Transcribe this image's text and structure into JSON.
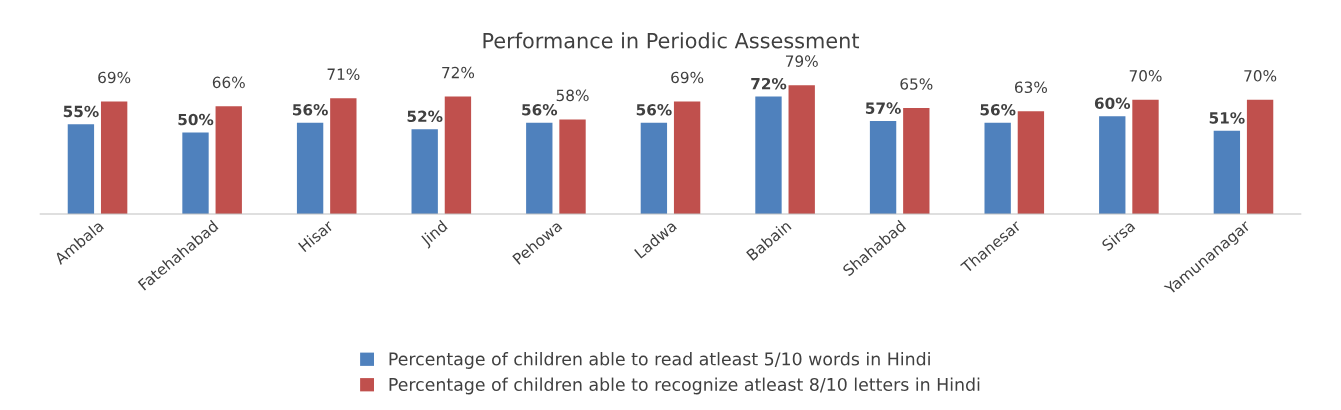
{
  "chart_data": {
    "type": "bar",
    "title": "Performance in Periodic Assessment",
    "categories": [
      "Ambala",
      "Fatehahabad",
      "Hisar",
      "Jind",
      "Pehowa",
      "Ladwa",
      "Babain",
      "Shahabad",
      "Thanesar",
      "Sirsa",
      "Yamunanagar"
    ],
    "series": [
      {
        "name": "Percentage of children able to read atleast 5/10 words in Hindi",
        "color": "#4f81bd",
        "values": [
          55,
          50,
          56,
          52,
          56,
          56,
          72,
          57,
          56,
          60,
          51
        ],
        "value_labels": [
          "55%",
          "50%",
          "56%",
          "52%",
          "56%",
          "56%",
          "72%",
          "57%",
          "56%",
          "60%",
          "51%"
        ]
      },
      {
        "name": "Percentage of children able to recognize atleast 8/10 letters in Hindi",
        "color": "#c0504d",
        "values": [
          69,
          66,
          71,
          72,
          58,
          69,
          79,
          65,
          63,
          70,
          70
        ],
        "value_labels": [
          "69%",
          "66%",
          "71%",
          "72%",
          "58%",
          "69%",
          "79%",
          "65%",
          "63%",
          "70%",
          "70%"
        ]
      }
    ],
    "legend": "bottom",
    "grid": false
  }
}
